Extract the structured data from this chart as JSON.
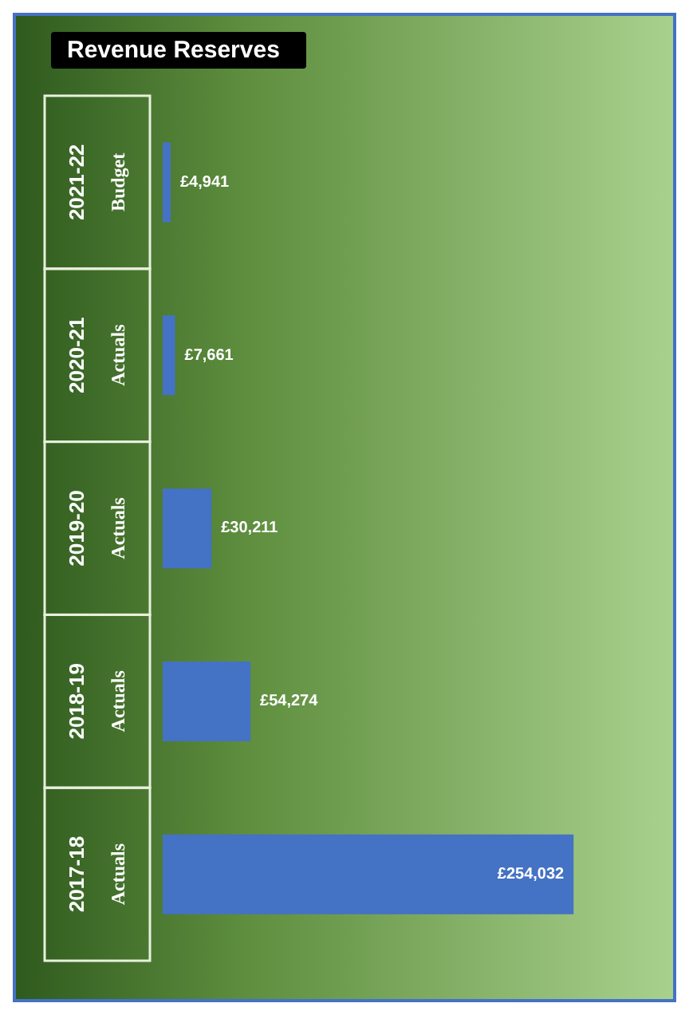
{
  "chart_data": {
    "type": "bar",
    "orientation": "horizontal",
    "title": "Revenue Reserves",
    "categories": [
      "2021-22 Budget",
      "2020-21 Actuals",
      "2019-20 Actuals",
      "2018-19 Actuals",
      "2017-18 Actuals"
    ],
    "values": [
      4941,
      7661,
      30211,
      54274,
      254032
    ],
    "value_labels": [
      "£4,941",
      "£7,661",
      "£30,211",
      "£54,274",
      "£254,032"
    ],
    "color": "#4472c4"
  }
}
